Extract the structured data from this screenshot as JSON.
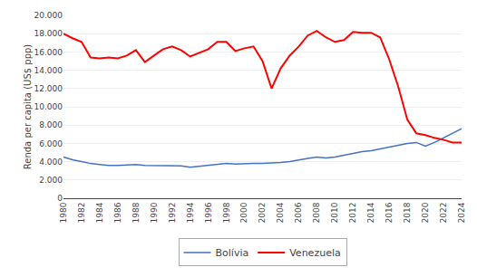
{
  "chart_data": {
    "type": "line",
    "ylabel": "Renda per capita (US$ ppp)",
    "x": [
      1980,
      1981,
      1982,
      1983,
      1984,
      1985,
      1986,
      1987,
      1988,
      1989,
      1990,
      1991,
      1992,
      1993,
      1994,
      1995,
      1996,
      1997,
      1998,
      1999,
      2000,
      2001,
      2002,
      2003,
      2004,
      2005,
      2006,
      2007,
      2008,
      2009,
      2010,
      2011,
      2012,
      2013,
      2014,
      2015,
      2016,
      2017,
      2018,
      2019,
      2020,
      2021,
      2022,
      2023,
      2024
    ],
    "series": [
      {
        "name": "Bolívia",
        "color": "#4472C4",
        "values": [
          4500,
          4200,
          4000,
          3800,
          3700,
          3600,
          3600,
          3650,
          3700,
          3600,
          3600,
          3600,
          3550,
          3550,
          3400,
          3500,
          3550,
          3650,
          3800,
          3750,
          3800,
          3820,
          3800,
          3830,
          3900,
          4000,
          4200,
          4350,
          4500,
          4400,
          4500,
          4700,
          4900,
          5100,
          5200,
          5400,
          5600,
          5800,
          6000,
          6100,
          5700,
          6100,
          6600,
          7100,
          7600
        ]
      },
      {
        "name": "Venezuela",
        "color": "#FF0000",
        "values": [
          18000,
          17500,
          17100,
          15400,
          15300,
          15400,
          15300,
          15600,
          16200,
          14900,
          15600,
          16300,
          16600,
          16200,
          15500,
          15900,
          16300,
          17100,
          17100,
          16100,
          16400,
          16600,
          15000,
          12000,
          14200,
          15600,
          16600,
          17800,
          18300,
          17600,
          17100,
          17300,
          18200,
          18100,
          18100,
          17600,
          15200,
          12200,
          8600,
          7100,
          6900,
          6600,
          6400,
          6100,
          6100
        ]
      }
    ],
    "xlim": [
      1980,
      2024
    ],
    "xticks": [
      1980,
      1982,
      1984,
      1986,
      1988,
      1990,
      1992,
      1994,
      1996,
      1998,
      2000,
      2002,
      2004,
      2006,
      2008,
      2010,
      2012,
      2014,
      2016,
      2018,
      2020,
      2022,
      2024
    ],
    "ylim": [
      0,
      20000
    ],
    "yticks": [
      0,
      {
        "value": 2000,
        "label": "2.000"
      },
      {
        "value": 4000,
        "label": "4.000"
      },
      {
        "value": 6000,
        "label": "6.000"
      },
      {
        "value": 8000,
        "label": "8.000"
      },
      {
        "value": 10000,
        "label": "10.000"
      },
      {
        "value": 12000,
        "label": "12.000"
      },
      {
        "value": 14000,
        "label": "14.000"
      },
      {
        "value": 16000,
        "label": "16.000"
      },
      {
        "value": 18000,
        "label": "18.000"
      },
      {
        "value": 20000,
        "label": "20.000"
      }
    ],
    "grid": "y",
    "legend": "bottom"
  }
}
